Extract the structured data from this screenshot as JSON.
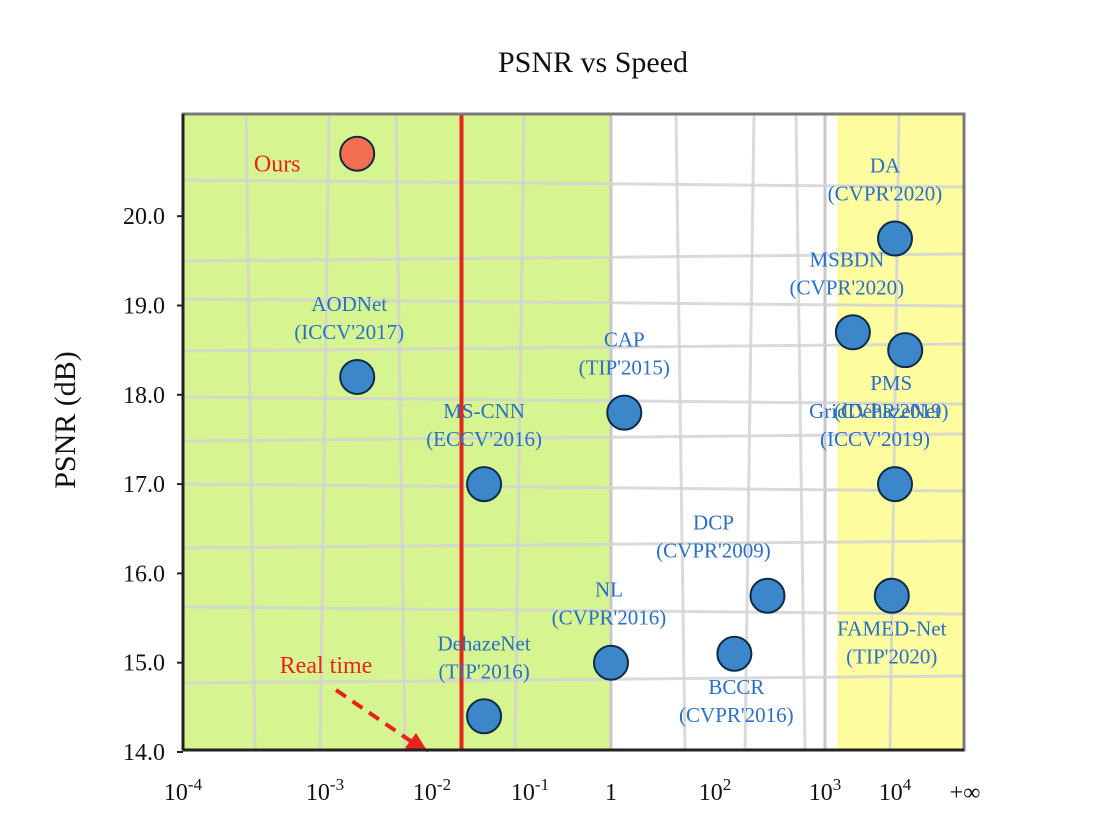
{
  "chart_data": {
    "type": "scatter",
    "title": "PSNR vs Speed",
    "xlabel": "",
    "ylabel": "PSNR (dB)",
    "x_scale": "log",
    "x_ticks": [
      {
        "value": 0.0001,
        "base": "10",
        "exp": "-4"
      },
      {
        "value": 0.001,
        "base": "10",
        "exp": "-3"
      },
      {
        "value": 0.01,
        "base": "10",
        "exp": "-2"
      },
      {
        "value": 0.1,
        "base": "10",
        "exp": "-1"
      },
      {
        "value": 1,
        "base": "1",
        "exp": ""
      },
      {
        "value": 100,
        "base": "10",
        "exp": "2"
      },
      {
        "value": 1000,
        "base": "10",
        "exp": "3"
      },
      {
        "value": 10000,
        "base": "10",
        "exp": "4"
      },
      {
        "value": "inf",
        "base": "+∞",
        "exp": ""
      }
    ],
    "y_ticks": [
      "14.0",
      "15.0",
      "16.0",
      "17.0",
      "18.0",
      "19.0",
      "20.0"
    ],
    "ylim": [
      14.0,
      20.7
    ],
    "regions": [
      {
        "name": "green",
        "from": 0.0001,
        "to": 1,
        "color": "#d6f590"
      },
      {
        "name": "white",
        "from": 1,
        "to": 1500,
        "color": "#ffffff"
      },
      {
        "name": "yellow",
        "from": 1500,
        "to": "inf",
        "color": "#fdfda0"
      }
    ],
    "real_time": {
      "x": 0.02,
      "label": "Real time",
      "color": "#e8231a"
    },
    "points": [
      {
        "name": "Ours",
        "venue": "",
        "x": 0.002,
        "y": 20.7,
        "color": "#f26e50"
      },
      {
        "name": "AODNet",
        "venue": "(ICCV'2017)",
        "x": 0.002,
        "y": 18.2,
        "color": "#3b87c9"
      },
      {
        "name": "MS-CNN",
        "venue": "(ECCV'2016)",
        "x": 0.034,
        "y": 17.0,
        "color": "#3b87c9"
      },
      {
        "name": "DehazeNet",
        "venue": "(TIP'2016)",
        "x": 0.034,
        "y": 14.4,
        "color": "#3b87c9"
      },
      {
        "name": "CAP",
        "venue": "(TIP'2015)",
        "x": 1.8,
        "y": 17.8,
        "color": "#3b87c9"
      },
      {
        "name": "NL",
        "venue": "(CVPR'2016)",
        "x": 1.0,
        "y": 15.0,
        "color": "#3b87c9"
      },
      {
        "name": "DCP",
        "venue": "(CVPR'2009)",
        "x": 300,
        "y": 15.75,
        "color": "#3b87c9"
      },
      {
        "name": "BCCR",
        "venue": "(CVPR'2016)",
        "x": 150,
        "y": 15.1,
        "color": "#3b87c9"
      },
      {
        "name": "DA",
        "venue": "(CVPR'2020)",
        "x": 10000,
        "y": 19.75,
        "color": "#3b87c9"
      },
      {
        "name": "MSBDN",
        "venue": "(CVPR'2020)",
        "x": 2500,
        "y": 18.7,
        "color": "#3b87c9"
      },
      {
        "name": "PMS",
        "venue": "(CVPR'2019)",
        "x": 14000,
        "y": 18.5,
        "color": "#3b87c9"
      },
      {
        "name": "GridDehazeNet",
        "venue": "(ICCV'2019)",
        "x": 10000,
        "y": 17.0,
        "color": "#3b87c9"
      },
      {
        "name": "FAMED-Net",
        "venue": "(TIP'2020)",
        "x": 9000,
        "y": 15.75,
        "color": "#3b87c9"
      }
    ]
  }
}
